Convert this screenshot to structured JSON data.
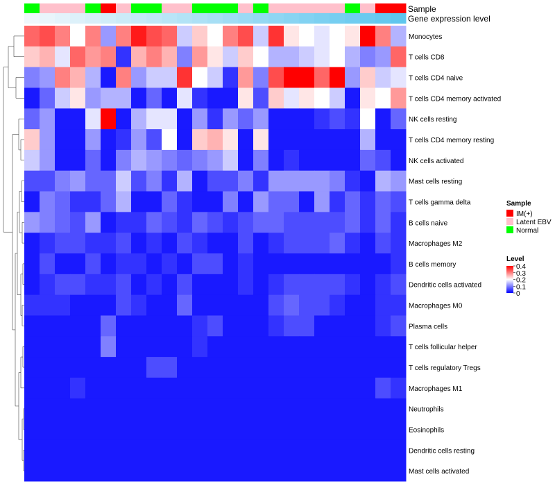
{
  "chart_data": {
    "type": "heatmap",
    "title": "",
    "annotation_rows": [
      {
        "label": "Sample"
      },
      {
        "label": "Gene expression level"
      }
    ],
    "sample_groups": [
      "Normal",
      "Latent EBV",
      "Latent EBV",
      "Latent EBV",
      "Normal",
      "IM(+)",
      "Latent EBV",
      "Normal",
      "Normal",
      "Latent EBV",
      "Latent EBV",
      "Normal",
      "Normal",
      "Normal",
      "Latent EBV",
      "Normal",
      "Latent EBV",
      "Latent EBV",
      "Latent EBV",
      "Latent EBV",
      "Latent EBV",
      "Normal",
      "Latent EBV",
      "IM(+)",
      "IM(+)"
    ],
    "gene_expression_level": [
      0.02,
      0.06,
      0.1,
      0.14,
      0.18,
      0.22,
      0.26,
      0.3,
      0.34,
      0.38,
      0.42,
      0.46,
      0.5,
      0.54,
      0.58,
      0.62,
      0.66,
      0.7,
      0.74,
      0.78,
      0.82,
      0.86,
      0.9,
      0.94,
      0.98
    ],
    "rows": [
      "Monocytes",
      "T cells CD8",
      "T cells CD4 naive",
      "T cells CD4 memory activated",
      "NK cells resting",
      "T cells CD4 memory resting",
      "NK cells activated",
      "Mast cells resting",
      "T cells gamma delta",
      "B cells naive",
      "Macrophages M2",
      "B cells memory",
      "Dendritic cells activated",
      "Macrophages M0",
      "Plasma cells",
      "T cells follicular helper",
      "T cells regulatory  Tregs",
      "Macrophages M1",
      "Neutrophils",
      "Eosinophils",
      "Dendritic cells resting",
      "Mast cells activated"
    ],
    "values": [
      [
        0.32,
        0.34,
        0.3,
        0.2,
        0.3,
        0.12,
        0.3,
        0.38,
        0.34,
        0.32,
        0.16,
        0.24,
        0.2,
        0.3,
        0.34,
        0.16,
        0.36,
        0.22,
        0.2,
        0.18,
        0.2,
        0.22,
        0.4,
        0.3,
        0.14
      ],
      [
        0.24,
        0.26,
        0.18,
        0.32,
        0.28,
        0.3,
        0.04,
        0.26,
        0.3,
        0.26,
        0.1,
        0.28,
        0.22,
        0.16,
        0.24,
        0.2,
        0.14,
        0.14,
        0.16,
        0.18,
        0.2,
        0.14,
        0.1,
        0.12,
        0.32
      ],
      [
        0.1,
        0.12,
        0.3,
        0.26,
        0.14,
        0.02,
        0.3,
        0.12,
        0.16,
        0.16,
        0.36,
        0.2,
        0.16,
        0.04,
        0.28,
        0.1,
        0.34,
        0.4,
        0.4,
        0.32,
        0.4,
        0.12,
        0.24,
        0.16,
        0.18
      ],
      [
        0.02,
        0.08,
        0.16,
        0.22,
        0.12,
        0.14,
        0.14,
        0.02,
        0.08,
        0.02,
        0.18,
        0.04,
        0.02,
        0.02,
        0.22,
        0.06,
        0.24,
        0.18,
        0.22,
        0.2,
        0.16,
        0.02,
        0.22,
        0.2,
        0.28
      ],
      [
        0.08,
        0.12,
        0.02,
        0.02,
        0.18,
        0.4,
        0.02,
        0.14,
        0.18,
        0.18,
        0.02,
        0.12,
        0.04,
        0.12,
        0.08,
        0.12,
        0.02,
        0.02,
        0.02,
        0.04,
        0.06,
        0.04,
        0.2,
        0.02,
        0.08
      ],
      [
        0.24,
        0.12,
        0.02,
        0.02,
        0.12,
        0.02,
        0.04,
        0.12,
        0.06,
        0.2,
        0.02,
        0.24,
        0.26,
        0.22,
        0.02,
        0.22,
        0.02,
        0.02,
        0.02,
        0.02,
        0.02,
        0.02,
        0.14,
        0.02,
        0.02
      ],
      [
        0.16,
        0.12,
        0.02,
        0.02,
        0.08,
        0.02,
        0.1,
        0.14,
        0.12,
        0.1,
        0.08,
        0.1,
        0.12,
        0.16,
        0.02,
        0.1,
        0.02,
        0.04,
        0.02,
        0.02,
        0.02,
        0.02,
        0.08,
        0.06,
        0.02
      ],
      [
        0.06,
        0.06,
        0.1,
        0.12,
        0.08,
        0.08,
        0.16,
        0.06,
        0.1,
        0.04,
        0.14,
        0.02,
        0.06,
        0.06,
        0.1,
        0.04,
        0.12,
        0.12,
        0.12,
        0.12,
        0.1,
        0.04,
        0.02,
        0.14,
        0.12
      ],
      [
        0.02,
        0.1,
        0.08,
        0.04,
        0.04,
        0.08,
        0.14,
        0.02,
        0.02,
        0.08,
        0.04,
        0.02,
        0.02,
        0.1,
        0.02,
        0.12,
        0.08,
        0.08,
        0.02,
        0.12,
        0.04,
        0.08,
        0.04,
        0.08,
        0.06
      ],
      [
        0.12,
        0.1,
        0.08,
        0.06,
        0.12,
        0.02,
        0.04,
        0.04,
        0.08,
        0.06,
        0.04,
        0.08,
        0.06,
        0.04,
        0.06,
        0.08,
        0.08,
        0.06,
        0.06,
        0.06,
        0.06,
        0.08,
        0.04,
        0.08,
        0.04
      ],
      [
        0.02,
        0.04,
        0.06,
        0.06,
        0.04,
        0.04,
        0.06,
        0.02,
        0.04,
        0.02,
        0.06,
        0.04,
        0.02,
        0.02,
        0.06,
        0.02,
        0.04,
        0.06,
        0.06,
        0.06,
        0.08,
        0.04,
        0.02,
        0.06,
        0.04
      ],
      [
        0.02,
        0.06,
        0.02,
        0.02,
        0.06,
        0.02,
        0.04,
        0.04,
        0.02,
        0.04,
        0.02,
        0.06,
        0.06,
        0.02,
        0.04,
        0.02,
        0.02,
        0.02,
        0.02,
        0.02,
        0.02,
        0.02,
        0.02,
        0.02,
        0.04
      ],
      [
        0.02,
        0.04,
        0.06,
        0.06,
        0.04,
        0.04,
        0.06,
        0.02,
        0.04,
        0.02,
        0.06,
        0.02,
        0.02,
        0.02,
        0.04,
        0.02,
        0.04,
        0.06,
        0.06,
        0.06,
        0.06,
        0.04,
        0.02,
        0.04,
        0.06
      ],
      [
        0.04,
        0.04,
        0.04,
        0.02,
        0.02,
        0.02,
        0.06,
        0.04,
        0.02,
        0.02,
        0.08,
        0.02,
        0.02,
        0.02,
        0.02,
        0.02,
        0.06,
        0.08,
        0.06,
        0.06,
        0.04,
        0.02,
        0.02,
        0.04,
        0.04
      ],
      [
        0.02,
        0.02,
        0.02,
        0.02,
        0.02,
        0.08,
        0.02,
        0.02,
        0.02,
        0.02,
        0.02,
        0.04,
        0.06,
        0.02,
        0.02,
        0.02,
        0.04,
        0.06,
        0.06,
        0.02,
        0.02,
        0.02,
        0.02,
        0.04,
        0.06
      ],
      [
        0.02,
        0.02,
        0.02,
        0.02,
        0.02,
        0.1,
        0.02,
        0.02,
        0.02,
        0.02,
        0.02,
        0.04,
        0.02,
        0.02,
        0.02,
        0.02,
        0.02,
        0.02,
        0.02,
        0.02,
        0.02,
        0.02,
        0.02,
        0.02,
        0.02
      ],
      [
        0.02,
        0.02,
        0.02,
        0.02,
        0.02,
        0.02,
        0.02,
        0.02,
        0.06,
        0.06,
        0.02,
        0.02,
        0.02,
        0.02,
        0.02,
        0.02,
        0.02,
        0.02,
        0.02,
        0.02,
        0.02,
        0.02,
        0.02,
        0.02,
        0.02
      ],
      [
        0.02,
        0.02,
        0.02,
        0.04,
        0.02,
        0.02,
        0.02,
        0.02,
        0.02,
        0.02,
        0.02,
        0.02,
        0.02,
        0.02,
        0.02,
        0.02,
        0.02,
        0.02,
        0.02,
        0.02,
        0.02,
        0.02,
        0.02,
        0.06,
        0.04
      ],
      [
        0.02,
        0.02,
        0.02,
        0.02,
        0.02,
        0.02,
        0.02,
        0.02,
        0.02,
        0.02,
        0.02,
        0.02,
        0.02,
        0.02,
        0.02,
        0.02,
        0.02,
        0.02,
        0.02,
        0.02,
        0.02,
        0.02,
        0.02,
        0.02,
        0.02
      ],
      [
        0.02,
        0.02,
        0.02,
        0.02,
        0.02,
        0.02,
        0.02,
        0.02,
        0.02,
        0.02,
        0.02,
        0.02,
        0.02,
        0.02,
        0.02,
        0.02,
        0.02,
        0.02,
        0.02,
        0.02,
        0.02,
        0.02,
        0.02,
        0.02,
        0.02
      ],
      [
        0.02,
        0.02,
        0.02,
        0.02,
        0.02,
        0.02,
        0.02,
        0.02,
        0.02,
        0.02,
        0.02,
        0.02,
        0.02,
        0.02,
        0.02,
        0.02,
        0.02,
        0.02,
        0.02,
        0.02,
        0.02,
        0.02,
        0.02,
        0.02,
        0.02
      ],
      [
        0.02,
        0.02,
        0.02,
        0.02,
        0.02,
        0.02,
        0.02,
        0.02,
        0.02,
        0.02,
        0.02,
        0.02,
        0.02,
        0.02,
        0.02,
        0.02,
        0.02,
        0.02,
        0.02,
        0.02,
        0.02,
        0.02,
        0.02,
        0.02,
        0.02
      ]
    ],
    "color_scale": {
      "min": 0,
      "max": 0.4,
      "low": "#0000ff",
      "mid": "#ffffff",
      "high": "#ff0000"
    },
    "legends": [
      {
        "title": "Sample",
        "entries": [
          {
            "label": "IM(+)",
            "color": "#ff0000"
          },
          {
            "label": "Latent EBV",
            "color": "#ffc0cb"
          },
          {
            "label": "Normal",
            "color": "#00ff00"
          }
        ]
      },
      {
        "title": "Level",
        "ticks": [
          "0.4",
          "0.3",
          "0.2",
          "0.1",
          "0"
        ]
      }
    ],
    "gene_level_colors": {
      "low": "#f2f8fc",
      "high": "#5bc5ee"
    },
    "dendrogram": "row clustering tree on left side"
  }
}
